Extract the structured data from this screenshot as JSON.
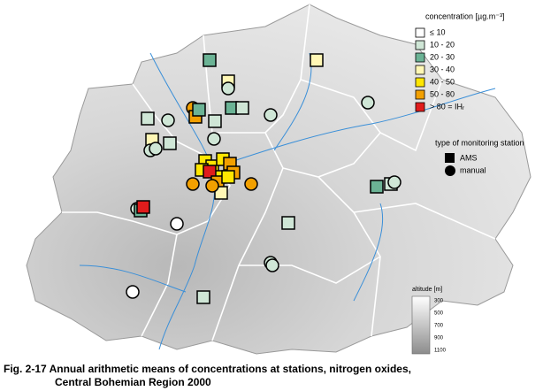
{
  "legend": {
    "title": "concentration [µg.m⁻³]",
    "items": [
      {
        "label": "≤ 10",
        "color": "#ffffff"
      },
      {
        "label": "10 - 20",
        "color": "#cfe6d6"
      },
      {
        "label": "20 - 30",
        "color": "#6bb395"
      },
      {
        "label": "30 - 40",
        "color": "#fff7b5"
      },
      {
        "label": "40 - 50",
        "color": "#ffe600"
      },
      {
        "label": "50 - 80",
        "color": "#f2a000"
      },
      {
        "label": "> 80 = IHᵣ",
        "color": "#e01c1c"
      }
    ],
    "station_title": "type of monitoring station",
    "stations": [
      "AMS",
      "manual"
    ]
  },
  "altitude": {
    "title": "altitude [m]",
    "ticks": [
      300,
      500,
      700,
      900,
      1100
    ]
  },
  "caption": [
    "Fig. 2-17  Annual arithmetic means of concentrations at stations, nitrogen oxides,",
    "Central Bohemian Region 2000"
  ]
}
